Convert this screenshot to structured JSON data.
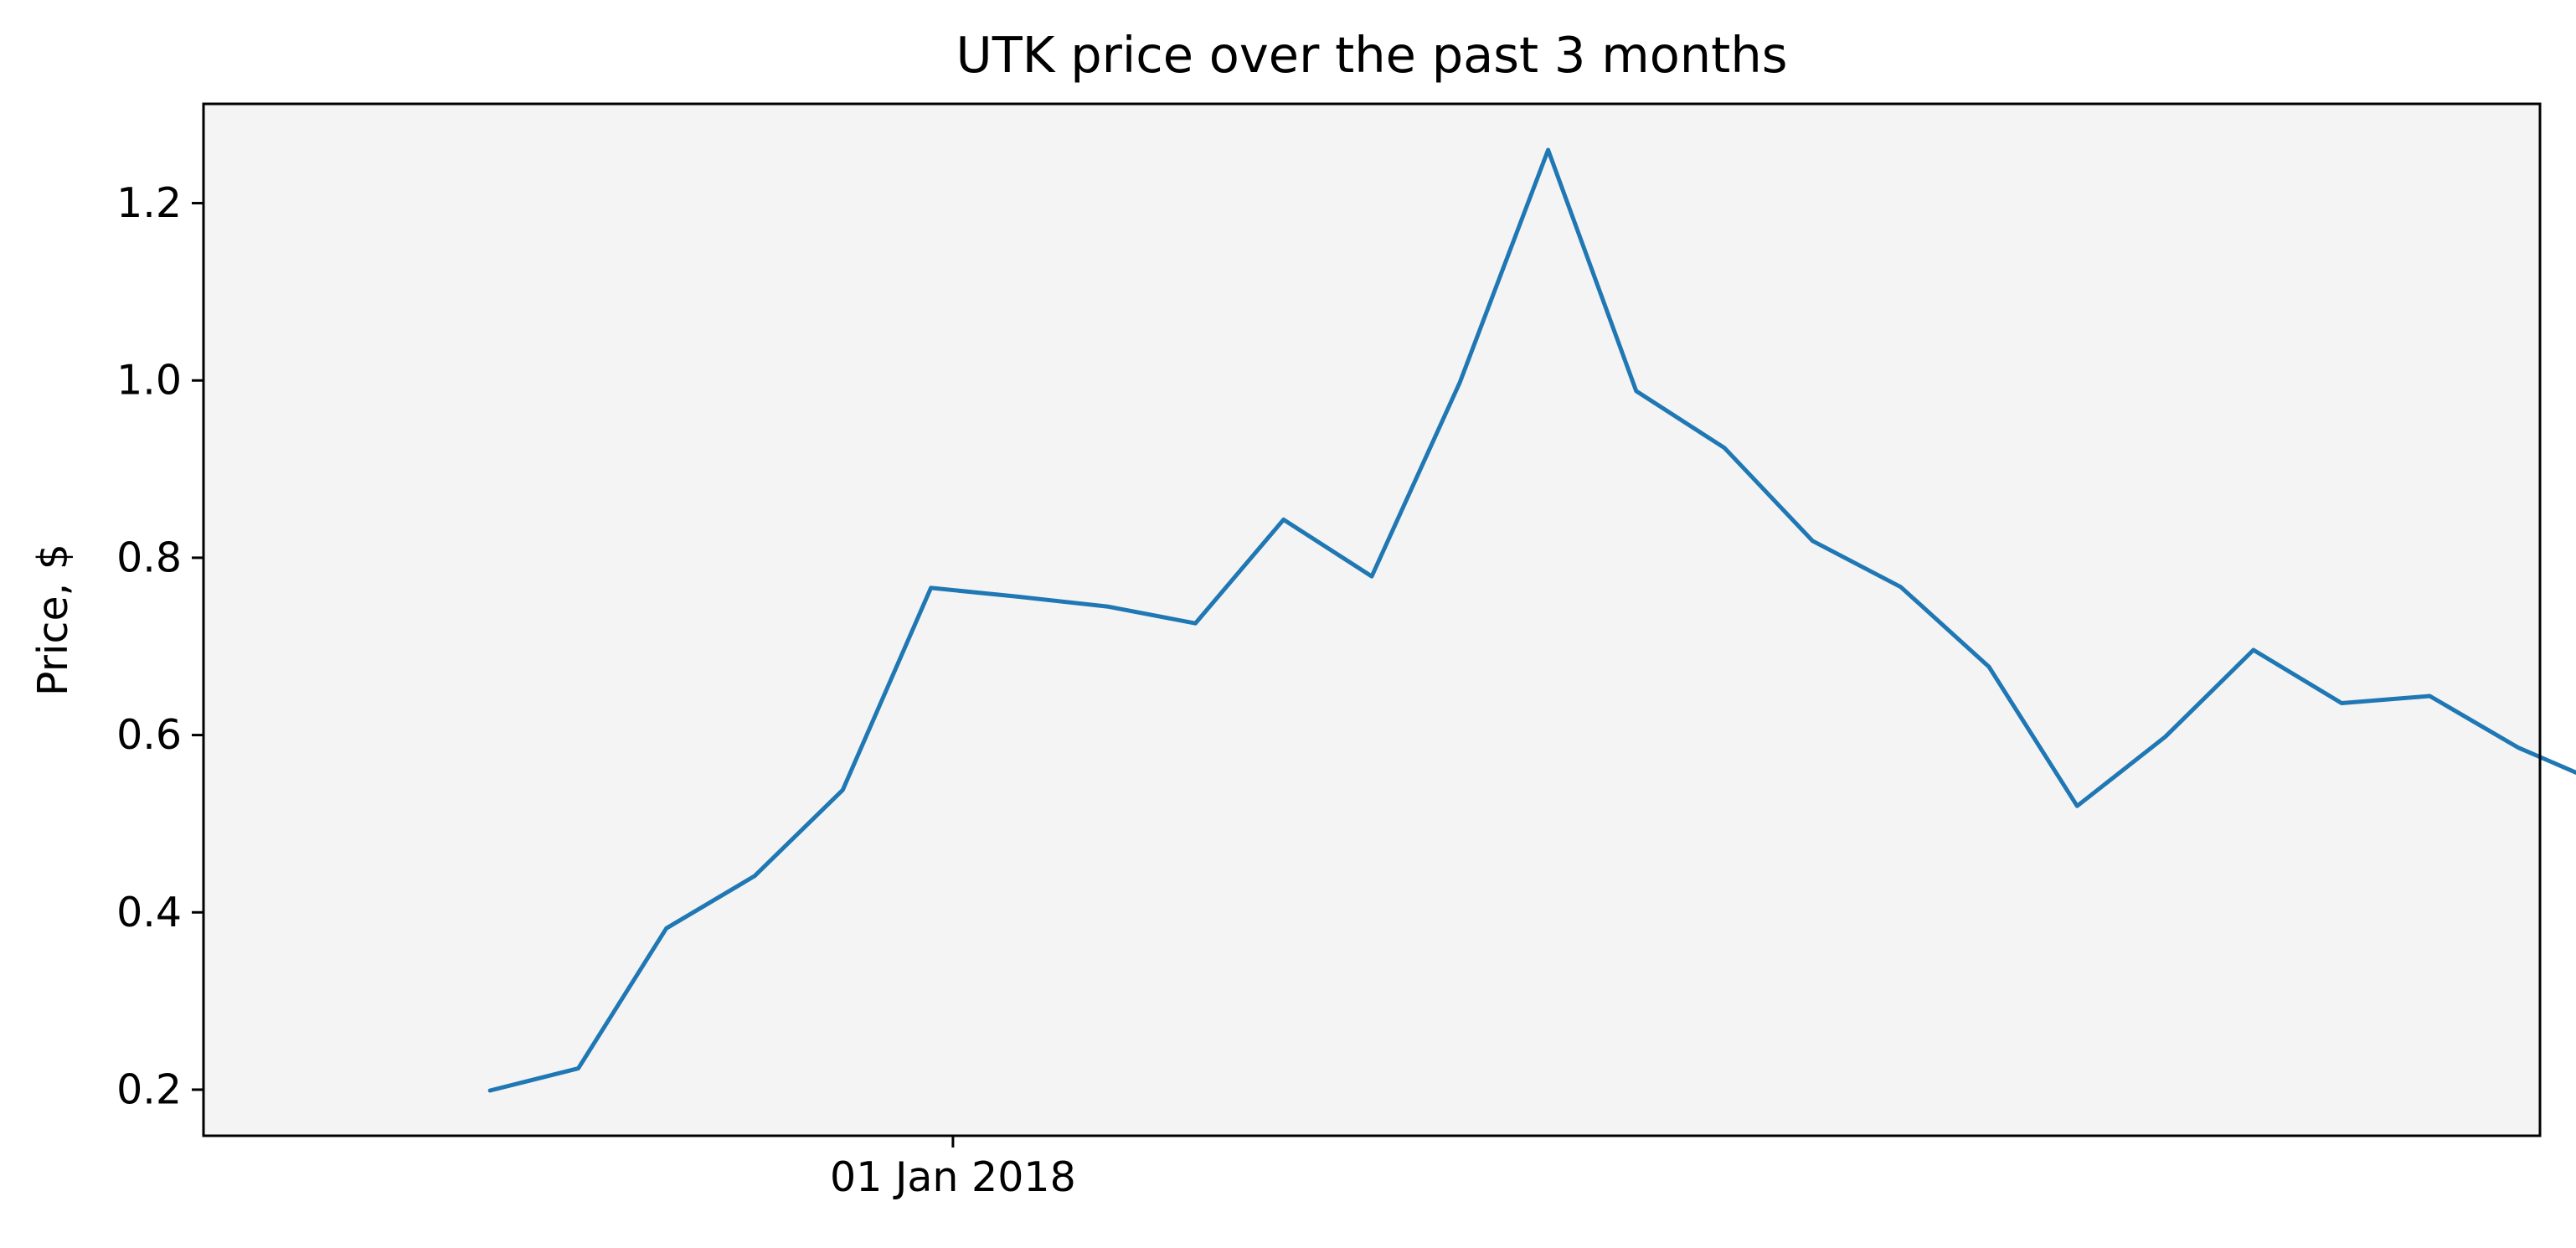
{
  "chart_data": {
    "type": "line",
    "title": "UTK price over the past 3 months",
    "xlabel": "",
    "ylabel": "Price, $",
    "ylim": [
      0.148,
      1.312
    ],
    "xlim": [
      "2017-11-28",
      "2018-03-14"
    ],
    "grid": false,
    "background_color": "#f4f4f4",
    "line_color": "#1f77b4",
    "x_tick_labels": [
      {
        "date": "2018-01-01",
        "label": "01 Jan 2018"
      }
    ],
    "y_tick_labels": [
      {
        "value": 0.2,
        "label": "0.2"
      },
      {
        "value": 0.4,
        "label": "0.4"
      },
      {
        "value": 0.6,
        "label": "0.6"
      },
      {
        "value": 0.8,
        "label": "0.8"
      },
      {
        "value": 1.0,
        "label": "1.0"
      },
      {
        "value": 1.2,
        "label": "1.2"
      }
    ],
    "series": [
      {
        "x": [
          "2017-12-11",
          "2017-12-15",
          "2017-12-19",
          "2017-12-23",
          "2017-12-27",
          "2017-12-31",
          "2018-01-04",
          "2018-01-08",
          "2018-01-12",
          "2018-01-16",
          "2018-01-20",
          "2018-01-24",
          "2018-01-28",
          "2018-02-01",
          "2018-02-05",
          "2018-02-09",
          "2018-02-13",
          "2018-02-17",
          "2018-02-21",
          "2018-02-25",
          "2018-03-01",
          "2018-03-05",
          "2018-03-09",
          "2018-03-13",
          "2018-03-17"
        ],
        "values": [
          0.199,
          0.224,
          0.382,
          0.441,
          0.538,
          0.766,
          0.756,
          0.745,
          0.726,
          0.843,
          0.779,
          0.998,
          1.26,
          0.988,
          0.924,
          0.819,
          0.767,
          0.677,
          0.52,
          0.598,
          0.696,
          0.636,
          0.644,
          0.586,
          0.543
        ]
      }
    ]
  }
}
